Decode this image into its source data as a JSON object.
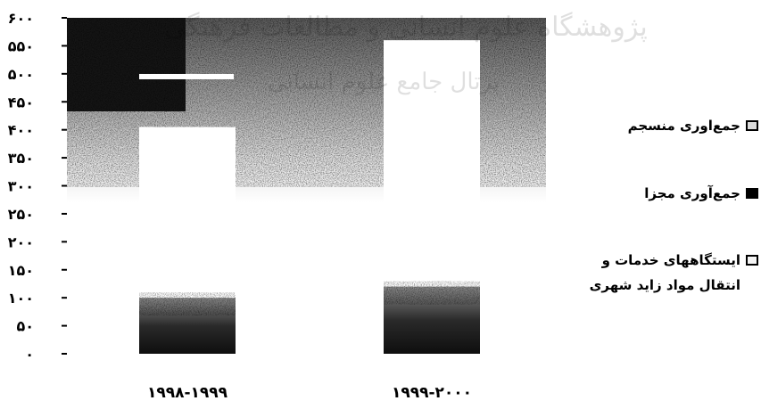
{
  "chart_data": {
    "type": "bar",
    "categories": [
      "۱۹۹۸-۱۹۹۹",
      "۱۹۹۹-۲۰۰۰"
    ],
    "series": [
      {
        "name": "ایستگاههای خدمات و\nانتقال مواد زاید شهری",
        "values": [
          100,
          120
        ]
      },
      {
        "name": "جمع‌آوری مجزا",
        "values": [
          0,
          0
        ]
      },
      {
        "name": "جمع‌اوری منسجم",
        "values": [
          305,
          440
        ]
      }
    ],
    "white_line_value": 495,
    "ylim": [
      0,
      600
    ],
    "yticks": [
      0,
      50,
      100,
      150,
      200,
      250,
      300,
      350,
      400,
      450,
      500,
      550,
      600
    ],
    "ytick_labels": [
      "۰",
      "۵۰",
      "۱۰۰",
      "۱۵۰",
      "۲۰۰",
      "۲۵۰",
      "۳۰۰",
      "۳۵۰",
      "۴۰۰",
      "۴۵۰",
      "۵۰۰",
      "۵۵۰",
      "۶۰۰"
    ],
    "title": "",
    "xlabel": "",
    "ylabel": "",
    "legend_position": "right",
    "colors": {
      "plot_background": "#b8b8b8",
      "plot_top_dark": "#151515",
      "bar_lower": "#2e2e2e",
      "bar_upper": "#ffffff",
      "legend_hatched": "#dcdcdc",
      "legend_solid": "#000000",
      "legend_light": "#f4f4f4"
    }
  },
  "watermark_text": "پژوهشگاه علوم انسانی و مطالعات فرهنگی پرتال جامع علوم انسانی"
}
